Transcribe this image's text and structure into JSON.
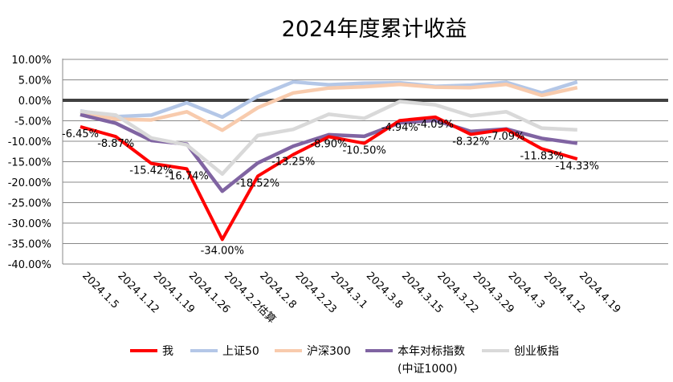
{
  "chart_data": {
    "type": "line",
    "title": "2024年度累计收益",
    "xlabel": "",
    "ylabel": "",
    "ylim": [
      -40,
      10
    ],
    "ytick_step": 5,
    "ytick_labels": [
      "10.00%",
      "5.00%",
      "0.00%",
      "-5.00%",
      "-10.00%",
      "-15.00%",
      "-20.00%",
      "-25.00%",
      "-30.00%",
      "-35.00%",
      "-40.00%"
    ],
    "grid": true,
    "legend_position": "bottom",
    "categories": [
      "2024.1.5",
      "2024.1.12",
      "2024.1.19",
      "2024.1.26",
      "2024.2.2估算",
      "2024.2.8",
      "2024.2.23",
      "2024.3.1",
      "2024.3.8",
      "2024.3.15",
      "2024.3.22",
      "2024.3.29",
      "2024.4.3",
      "2024.4.12",
      "2024.4.19"
    ],
    "series": [
      {
        "name": "上证50",
        "color": "#b4c7e7",
        "values": [
          -2.6,
          -4.0,
          -3.6,
          -0.6,
          -4.1,
          1.0,
          4.5,
          3.8,
          4.2,
          4.3,
          3.4,
          3.7,
          4.4,
          1.8,
          4.5
        ]
      },
      {
        "name": "沪深300",
        "color": "#f8cbad",
        "values": [
          -3.0,
          -4.6,
          -4.8,
          -2.8,
          -7.3,
          -1.8,
          1.8,
          3.0,
          3.3,
          3.9,
          3.2,
          3.1,
          3.9,
          1.2,
          3.1
        ]
      },
      {
        "name": "本年对标指数\n(中证1000)",
        "legend_line1": "本年对标指数",
        "legend_line2": "(中证1000)",
        "color": "#8064a2",
        "values": [
          -3.5,
          -5.6,
          -9.8,
          -10.7,
          -22.2,
          -15.3,
          -11.2,
          -8.4,
          -8.8,
          -5.5,
          -4.9,
          -7.6,
          -7.0,
          -9.3,
          -10.5
        ]
      },
      {
        "name": "创业板指",
        "color": "#d9d9d9",
        "values": [
          -2.7,
          -3.6,
          -9.2,
          -10.9,
          -18.0,
          -8.6,
          -7.1,
          -3.4,
          -4.4,
          -0.3,
          -1.1,
          -3.8,
          -2.8,
          -6.8,
          -7.2
        ]
      },
      {
        "name": "我",
        "color": "#ff0000",
        "values": [
          -6.45,
          -8.87,
          -15.42,
          -16.74,
          -34.0,
          -18.52,
          -13.25,
          -8.9,
          -10.5,
          -4.94,
          -4.09,
          -8.32,
          -7.09,
          -11.83,
          -14.33
        ],
        "data_labels": [
          "-6.45%",
          "-8.87%",
          "-15.42%",
          "-16.74%",
          "-34.00%",
          "-18.52%",
          "-13.25%",
          "-8.90%",
          "-10.50%",
          "-4.94%",
          "-4.09%",
          "-8.32%",
          "-7.09%",
          "-11.83%",
          "-14.33%"
        ]
      }
    ],
    "legend_order": [
      "我",
      "上证50",
      "沪深300",
      "本年对标指数\n(中证1000)",
      "创业板指"
    ]
  }
}
